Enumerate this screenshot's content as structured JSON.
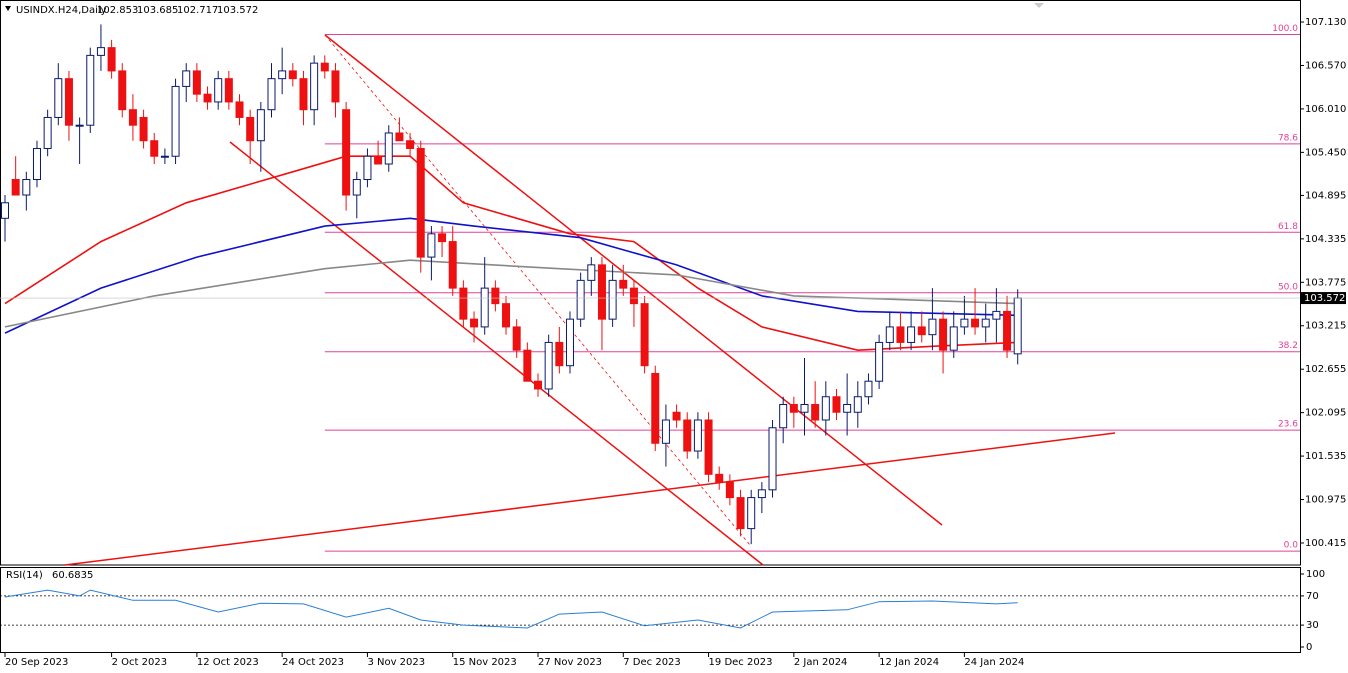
{
  "chart_data": {
    "type": "candlestick",
    "symbol": "USINDX.H24,Daily",
    "ohlc": [
      [
        104.6,
        104.9,
        104.3,
        104.8
      ],
      [
        105.1,
        105.4,
        104.9,
        104.9
      ],
      [
        104.9,
        105.2,
        104.7,
        105.1
      ],
      [
        105.1,
        105.6,
        105.0,
        105.5
      ],
      [
        105.5,
        106.0,
        105.4,
        105.9
      ],
      [
        105.9,
        106.6,
        105.8,
        106.4
      ],
      [
        106.4,
        106.5,
        105.6,
        105.8
      ],
      [
        105.8,
        105.9,
        105.3,
        105.8
      ],
      [
        105.8,
        106.8,
        105.7,
        106.7
      ],
      [
        106.7,
        107.1,
        106.5,
        106.8
      ],
      [
        106.8,
        106.9,
        106.4,
        106.5
      ],
      [
        106.5,
        106.6,
        105.9,
        106.0
      ],
      [
        106.0,
        106.2,
        105.6,
        105.8
      ],
      [
        105.9,
        106.0,
        105.5,
        105.6
      ],
      [
        105.6,
        105.7,
        105.3,
        105.4
      ],
      [
        105.4,
        105.5,
        105.3,
        105.4
      ],
      [
        105.4,
        106.4,
        105.3,
        106.3
      ],
      [
        106.3,
        106.6,
        106.1,
        106.5
      ],
      [
        106.5,
        106.6,
        106.1,
        106.2
      ],
      [
        106.2,
        106.3,
        106.0,
        106.1
      ],
      [
        106.1,
        106.5,
        106.0,
        106.4
      ],
      [
        106.4,
        106.5,
        106.0,
        106.1
      ],
      [
        106.1,
        106.2,
        105.8,
        105.9
      ],
      [
        105.9,
        106.0,
        105.3,
        105.6
      ],
      [
        105.6,
        106.1,
        105.2,
        106.0
      ],
      [
        106.0,
        106.6,
        105.9,
        106.4
      ],
      [
        106.4,
        106.8,
        106.2,
        106.5
      ],
      [
        106.5,
        106.6,
        106.3,
        106.4
      ],
      [
        106.4,
        106.5,
        105.8,
        106.0
      ],
      [
        106.0,
        106.7,
        105.8,
        106.6
      ],
      [
        106.6,
        106.7,
        106.4,
        106.5
      ],
      [
        106.5,
        106.6,
        105.9,
        106.1
      ],
      [
        106.0,
        106.1,
        104.7,
        104.9
      ],
      [
        104.9,
        105.2,
        104.6,
        105.1
      ],
      [
        105.1,
        105.5,
        105.0,
        105.4
      ],
      [
        105.4,
        105.6,
        105.3,
        105.3
      ],
      [
        105.3,
        105.8,
        105.2,
        105.7
      ],
      [
        105.7,
        105.9,
        105.6,
        105.6
      ],
      [
        105.6,
        105.7,
        105.4,
        105.5
      ],
      [
        105.5,
        105.6,
        103.9,
        104.1
      ],
      [
        104.1,
        104.5,
        103.8,
        104.4
      ],
      [
        104.4,
        104.5,
        104.1,
        104.3
      ],
      [
        104.3,
        104.5,
        103.6,
        103.7
      ],
      [
        103.7,
        103.8,
        103.2,
        103.3
      ],
      [
        103.3,
        103.4,
        103.0,
        103.2
      ],
      [
        103.2,
        104.1,
        103.1,
        103.7
      ],
      [
        103.7,
        103.8,
        103.4,
        103.5
      ],
      [
        103.5,
        103.6,
        103.1,
        103.2
      ],
      [
        103.2,
        103.3,
        102.8,
        102.9
      ],
      [
        102.9,
        103.0,
        102.5,
        102.5
      ],
      [
        102.5,
        102.6,
        102.3,
        102.4
      ],
      [
        102.4,
        103.1,
        102.3,
        103.0
      ],
      [
        103.0,
        103.2,
        102.6,
        102.7
      ],
      [
        102.7,
        103.4,
        102.6,
        103.3
      ],
      [
        103.3,
        103.9,
        103.2,
        103.8
      ],
      [
        103.8,
        104.1,
        103.6,
        104.0
      ],
      [
        104.0,
        104.1,
        102.9,
        103.3
      ],
      [
        103.3,
        104.0,
        103.2,
        103.8
      ],
      [
        103.8,
        104.0,
        103.6,
        103.7
      ],
      [
        103.7,
        103.8,
        103.2,
        103.5
      ],
      [
        103.5,
        103.6,
        102.6,
        102.7
      ],
      [
        102.6,
        102.7,
        101.6,
        101.7
      ],
      [
        101.7,
        102.2,
        101.4,
        102.0
      ],
      [
        102.1,
        102.2,
        101.9,
        102.0
      ],
      [
        102.0,
        102.1,
        101.5,
        101.6
      ],
      [
        101.6,
        102.1,
        101.5,
        102.0
      ],
      [
        102.0,
        102.1,
        101.2,
        101.3
      ],
      [
        101.3,
        101.4,
        101.1,
        101.2
      ],
      [
        101.2,
        101.3,
        100.9,
        101.0
      ],
      [
        101.0,
        101.1,
        100.5,
        100.6
      ],
      [
        100.6,
        101.1,
        100.4,
        101.0
      ],
      [
        101.0,
        101.2,
        100.8,
        101.1
      ],
      [
        101.1,
        102.0,
        101.0,
        101.9
      ],
      [
        101.9,
        102.3,
        101.7,
        102.2
      ],
      [
        102.2,
        102.3,
        101.9,
        102.1
      ],
      [
        102.1,
        102.8,
        101.8,
        102.2
      ],
      [
        102.2,
        102.5,
        101.9,
        102.0
      ],
      [
        102.0,
        102.5,
        101.8,
        102.3
      ],
      [
        102.3,
        102.4,
        102.0,
        102.1
      ],
      [
        102.1,
        102.6,
        101.8,
        102.2
      ],
      [
        102.1,
        102.5,
        101.9,
        102.3
      ],
      [
        102.3,
        102.6,
        102.2,
        102.5
      ],
      [
        102.5,
        103.1,
        102.4,
        103.0
      ],
      [
        103.0,
        103.4,
        102.9,
        103.2
      ],
      [
        103.2,
        103.4,
        102.9,
        103.0
      ],
      [
        103.0,
        103.4,
        102.9,
        103.2
      ],
      [
        103.2,
        103.4,
        103.0,
        103.1
      ],
      [
        103.1,
        103.7,
        102.9,
        103.3
      ],
      [
        103.3,
        103.4,
        102.6,
        102.9
      ],
      [
        102.9,
        103.4,
        102.8,
        103.2
      ],
      [
        103.2,
        103.6,
        103.1,
        103.3
      ],
      [
        103.3,
        103.7,
        103.1,
        103.2
      ],
      [
        103.2,
        103.5,
        103.0,
        103.3
      ],
      [
        103.3,
        103.7,
        103.0,
        103.4
      ],
      [
        103.4,
        103.6,
        102.8,
        102.9
      ],
      [
        102.853,
        103.685,
        102.717,
        103.572
      ]
    ],
    "bull_color": "#ffffff",
    "bull_edge": "#0a1a6e",
    "bear_color": "#ee1111",
    "ylim": [
      100.131,
      107.414
    ],
    "yticks": [
      {
        "value": 107.13,
        "label": "107.130"
      },
      {
        "value": 106.57,
        "label": "106.570"
      },
      {
        "value": 106.01,
        "label": "106.010"
      },
      {
        "value": 105.45,
        "label": "105.450"
      },
      {
        "value": 104.895,
        "label": "104.895"
      },
      {
        "value": 104.335,
        "label": "104.335"
      },
      {
        "value": 103.775,
        "label": "103.775"
      },
      {
        "value": 103.215,
        "label": "103.215"
      },
      {
        "value": 102.655,
        "label": "102.655"
      },
      {
        "value": 102.095,
        "label": "102.095"
      },
      {
        "value": 101.535,
        "label": "101.535"
      },
      {
        "value": 100.975,
        "label": "100.975"
      },
      {
        "value": 100.415,
        "label": "100.415"
      }
    ],
    "xticks": [
      {
        "value": 0,
        "label": "20 Sep 2023"
      },
      {
        "value": 10,
        "label": "2 Oct 2023"
      },
      {
        "value": 18,
        "label": "12 Oct 2023"
      },
      {
        "value": 26,
        "label": "24 Oct 2023"
      },
      {
        "value": 34,
        "label": "3 Nov 2023"
      },
      {
        "value": 42,
        "label": "15 Nov 2023"
      },
      {
        "value": 50,
        "label": "27 Nov 2023"
      },
      {
        "value": 58,
        "label": "7 Dec 2023"
      },
      {
        "value": 66,
        "label": "19 Dec 2023"
      },
      {
        "value": 74,
        "label": "2 Jan 2024"
      },
      {
        "value": 82,
        "label": "12 Jan 2024"
      },
      {
        "value": 90,
        "label": "24 Jan 2024"
      }
    ],
    "moving_averages": [
      {
        "color": "#ee1111",
        "x": [
          0,
          9,
          17,
          27,
          32,
          38,
          43,
          53,
          59,
          65,
          71,
          80,
          87,
          95
        ],
        "values": [
          103.5,
          104.3,
          104.8,
          105.2,
          105.4,
          105.4,
          104.8,
          104.4,
          104.3,
          103.7,
          103.2,
          102.9,
          102.95,
          103.0
        ]
      },
      {
        "color": "#1111cc",
        "x": [
          0,
          9,
          18,
          30,
          38,
          44,
          54,
          63,
          71,
          80,
          95
        ],
        "values": [
          103.12,
          103.7,
          104.1,
          104.5,
          104.6,
          104.5,
          104.35,
          104.0,
          103.6,
          103.4,
          103.35
        ]
      },
      {
        "color": "#888888",
        "x": [
          0,
          14,
          30,
          38,
          52,
          63,
          74,
          95
        ],
        "values": [
          103.2,
          103.6,
          103.95,
          104.06,
          103.95,
          103.87,
          103.6,
          103.5
        ]
      }
    ],
    "fib_start": 30,
    "fib_color": "#e0409a",
    "fib_levels": [
      {
        "value": 106.97,
        "label": "100.0"
      },
      {
        "value": 105.56,
        "label": "78.6"
      },
      {
        "value": 104.42,
        "label": "61.8"
      },
      {
        "value": 103.64,
        "label": "50.0"
      },
      {
        "value": 102.88,
        "label": "38.2"
      },
      {
        "value": 101.87,
        "label": "23.6"
      },
      {
        "value": 100.31,
        "label": "0.0"
      }
    ],
    "rsi": {
      "name": "RSI(14)",
      "color": "#2a7fd4",
      "x": [
        0,
        4,
        7,
        8,
        12,
        16,
        20,
        24,
        28,
        32,
        36,
        39,
        43,
        49,
        52,
        56,
        60,
        65,
        69,
        72,
        79,
        82,
        87,
        93,
        95
      ],
      "values": [
        68.5,
        78,
        70,
        78,
        64,
        64,
        48,
        60,
        59,
        41,
        53,
        37,
        30,
        26,
        45,
        48,
        29,
        37,
        26,
        48,
        51,
        62,
        63,
        59,
        60.6835
      ],
      "ylim": [
        0,
        100
      ],
      "yticks": [
        100,
        70,
        30,
        0
      ],
      "levels": [
        70,
        30
      ]
    }
  }
}
